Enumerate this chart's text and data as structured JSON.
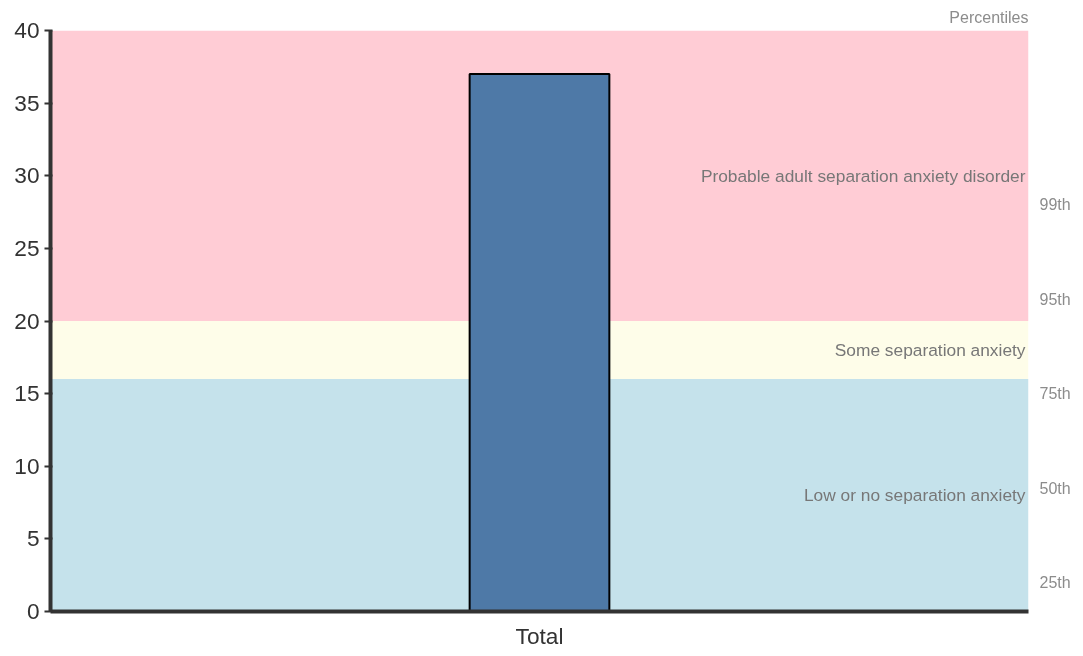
{
  "chart_data": {
    "type": "bar",
    "categories": [
      "Total"
    ],
    "values": [
      37
    ],
    "color": "#4e79a7",
    "ylim": [
      0,
      40
    ],
    "yticks": [
      0,
      5,
      10,
      15,
      20,
      25,
      30,
      35,
      40
    ],
    "annotations": [
      "Percentiles",
      "25th",
      "50th",
      "75th",
      "95th",
      "99th"
    ],
    "bands": [
      {
        "axis": "y",
        "from": 0,
        "to": 16,
        "label": "Low or no separation anxiety",
        "color": "#c5e2eb"
      },
      {
        "axis": "y",
        "from": 16,
        "to": 20,
        "label": "Some separation anxiety",
        "color": "#fefde9"
      },
      {
        "axis": "y",
        "from": 20,
        "to": 40,
        "label": "Probable adult separation anxiety disorder",
        "color": "#ffccd5"
      }
    ]
  }
}
